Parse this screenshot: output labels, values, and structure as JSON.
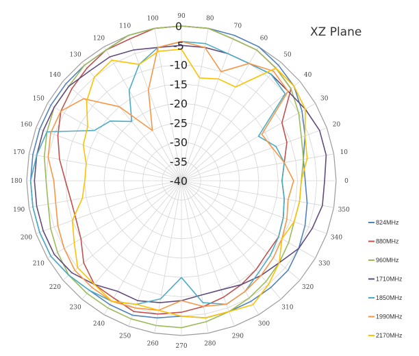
{
  "chart_data": {
    "type": "radar",
    "title": "XZ Plane",
    "angle_labels": [
      "0",
      "10",
      "20",
      "30",
      "40",
      "50",
      "60",
      "70",
      "80",
      "90",
      "100",
      "110",
      "120",
      "130",
      "140",
      "150",
      "160",
      "170",
      "180",
      "190",
      "200",
      "210",
      "220",
      "230",
      "240",
      "250",
      "260",
      "270",
      "280",
      "290",
      "300",
      "310",
      "320",
      "330",
      "340",
      "350"
    ],
    "radial_labels": [
      "0",
      "-5",
      "-10",
      "-15",
      "-20",
      "-25",
      "-30",
      "-35",
      "-40"
    ],
    "rlim": [
      -40,
      0
    ],
    "rticks": [
      0,
      -5,
      -10,
      -15,
      -20,
      -25,
      -30,
      -35,
      -40
    ],
    "angle_direction": "counterclockwise",
    "zero_angle": "right",
    "grid": true,
    "legend_position": "right",
    "series": [
      {
        "name": "824MHz",
        "color": "#4f81bd",
        "values": [
          -8,
          -8,
          -6,
          -4,
          -2,
          -1,
          0,
          0,
          0,
          0,
          0,
          0,
          -1,
          -1,
          -1,
          -1,
          -1,
          -1,
          -1,
          -1,
          -1,
          -1,
          -2,
          -3,
          -3,
          -3,
          -4,
          -5,
          -4,
          -4,
          -4,
          -4,
          -4,
          -5,
          -6,
          -7
        ]
      },
      {
        "name": "880MHz",
        "color": "#c0504d",
        "values": [
          -14,
          -13,
          -11,
          -10,
          -3,
          -2,
          -1,
          -1,
          0,
          0,
          0,
          -1,
          -1,
          -2,
          -3,
          -4,
          -6,
          -8,
          -10,
          -11,
          -11,
          -10,
          -7,
          -5,
          -5,
          -4,
          -5,
          -6,
          -7,
          -8,
          -9,
          -10,
          -11,
          -11,
          -12,
          -13
        ]
      },
      {
        "name": "960MHz",
        "color": "#9bbb59",
        "values": [
          -9,
          -8,
          -7,
          -5,
          -3,
          -2,
          -1,
          -1,
          0,
          0,
          0,
          0,
          -1,
          -1,
          -2,
          -2,
          -3,
          -4,
          -5,
          -5,
          -4,
          -3,
          -2,
          -2,
          -2,
          -2,
          -2,
          -2,
          -3,
          -4,
          -5,
          -6,
          -7,
          -8,
          -9,
          -9
        ]
      },
      {
        "name": "1710MHz",
        "color": "#604a7b",
        "values": [
          -3,
          -2,
          -2,
          -3,
          -4,
          -4,
          -5,
          -5,
          -5,
          -5,
          -5,
          -4,
          -3,
          -3,
          -2,
          -2,
          -2,
          -2,
          -2,
          -2,
          -2,
          -2,
          -3,
          -5,
          -7,
          -7,
          -8,
          -9,
          -10,
          -10,
          -9,
          -8,
          -7,
          -5,
          -4,
          -3
        ]
      },
      {
        "name": "1850MHz",
        "color": "#4bacc6",
        "values": [
          -14,
          -13,
          -14,
          -17,
          -5,
          -4,
          -5,
          -5,
          -4,
          -4,
          -5,
          -8,
          -13,
          -20,
          -16,
          -14,
          -3,
          -2,
          -1,
          -1,
          -1,
          -1,
          -2,
          -3,
          -4,
          -6,
          -9,
          -15,
          -8,
          -6,
          -7,
          -9,
          -10,
          -11,
          -12,
          -13
        ]
      },
      {
        "name": "1990MHz",
        "color": "#f79646",
        "values": [
          -11,
          -13,
          -15,
          -16,
          -4,
          -3,
          -5,
          -10,
          -5,
          -4,
          -5,
          -15,
          -25,
          -15,
          -7,
          -4,
          -4,
          -5,
          -7,
          -7,
          -6,
          -5,
          -4,
          -4,
          -4,
          -5,
          -6,
          -9,
          -7,
          -6,
          -7,
          -8,
          -9,
          -10,
          -11,
          -12
        ]
      },
      {
        "name": "2170MHz",
        "color": "#ffc000",
        "values": [
          -9,
          -7,
          -6,
          -3,
          -2,
          -2,
          -12,
          -12,
          -13,
          -6,
          -6,
          -8,
          -4,
          -5,
          -8,
          -12,
          -13,
          -15,
          -15,
          -14,
          -10,
          -8,
          -5,
          -5,
          -4,
          -6,
          -6,
          -5,
          -4,
          -4,
          -3,
          -5,
          -7,
          -10,
          -9,
          -9
        ]
      }
    ]
  }
}
